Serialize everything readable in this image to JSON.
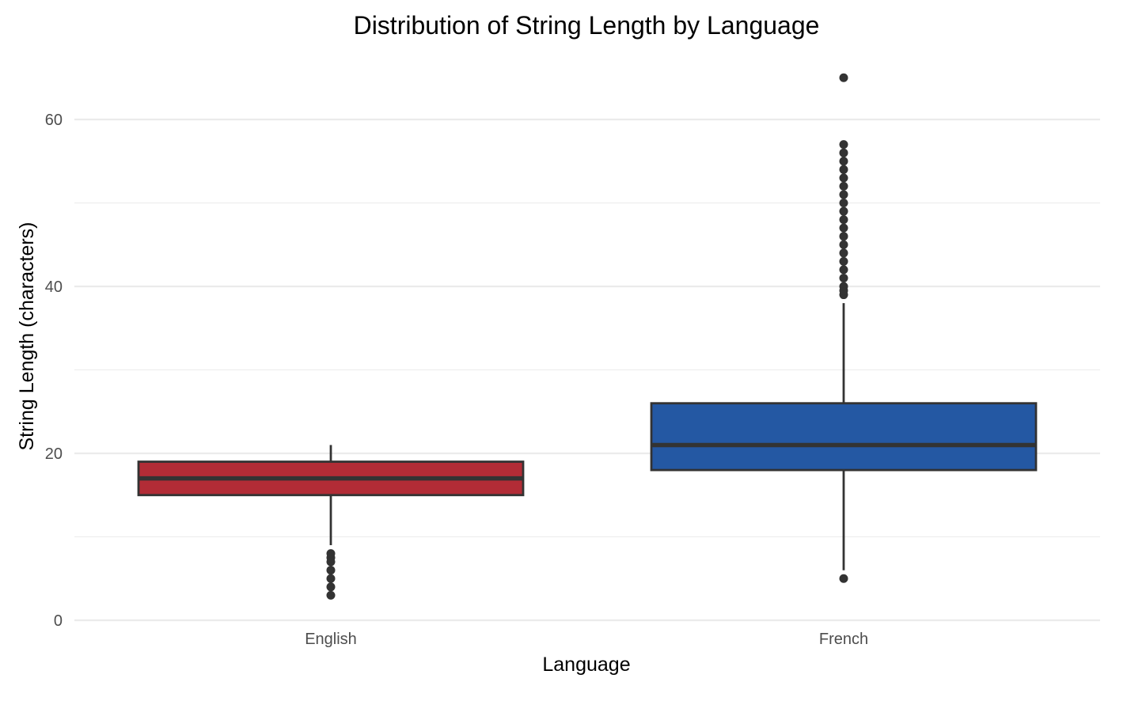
{
  "chart_data": {
    "type": "boxplot",
    "title": "Distribution of String Length by Language",
    "xlabel": "Language",
    "ylabel": "String Length (characters)",
    "ylim": [
      -0.5,
      67
    ],
    "yticks": [
      0,
      20,
      40,
      60
    ],
    "yminor": [
      10,
      30,
      50
    ],
    "grid": true,
    "categories": [
      "English",
      "French"
    ],
    "boxes": [
      {
        "category": "English",
        "color": "#b22c36",
        "q1": 15,
        "median": 17,
        "q3": 19,
        "whisker_low": 9,
        "whisker_high": 21,
        "outliers": [
          3,
          4,
          5,
          6,
          7,
          7.5,
          8
        ]
      },
      {
        "category": "French",
        "color": "#2458a3",
        "q1": 18,
        "median": 21,
        "q3": 26,
        "whisker_low": 6,
        "whisker_high": 38,
        "outliers": [
          5,
          39,
          39.5,
          40,
          41,
          42,
          43,
          44,
          45,
          46,
          47,
          48,
          49,
          50,
          51,
          52,
          53,
          54,
          55,
          56,
          57,
          65
        ]
      }
    ]
  }
}
